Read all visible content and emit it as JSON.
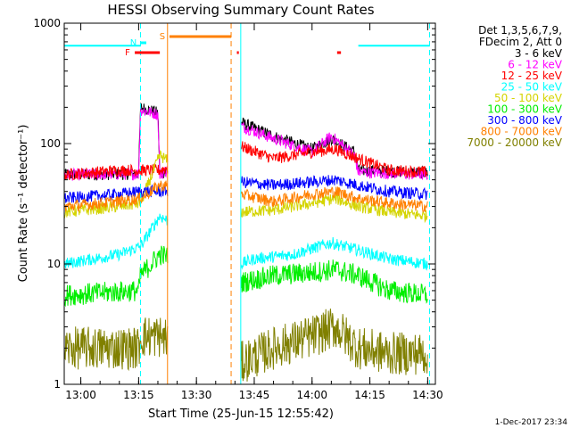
{
  "chart_data": {
    "type": "line",
    "title": "HESSI Observing Summary Count Rates",
    "xlabel": "Start Time (25-Jun-15 12:55:42)",
    "ylabel": "Count Rate (s⁻¹ detector⁻¹)",
    "y_scale": "log",
    "ylim": [
      1,
      1000
    ],
    "xlim": [
      "12:55:42",
      "14:32:00"
    ],
    "x_ticks": [
      "13:00",
      "13:15",
      "13:30",
      "13:45",
      "14:00",
      "14:15",
      "14:30"
    ],
    "y_ticks": [
      "1",
      "10",
      "100",
      "1000"
    ],
    "grid": false,
    "legend_position": "right",
    "legend_header": [
      "Det 1,3,5,6,7,9,",
      "FDecim 2, Att 0"
    ],
    "footer": "1-Dec-2017 23:34",
    "flag_labels": {
      "F": "F",
      "N": "N",
      "S": "S"
    },
    "flags": {
      "F": {
        "color": "#ff0000",
        "intervals": [
          [
            "13:14:00",
            "13:20:30"
          ],
          [
            "13:40:30",
            "13:41:00"
          ],
          [
            "14:06:30",
            "14:07:30"
          ]
        ]
      },
      "N": {
        "color": "#00ffff",
        "intervals": [
          [
            "13:15:30",
            "13:17:00"
          ]
        ]
      },
      "S": {
        "color": "#ff8000",
        "intervals": [
          [
            "13:23:00",
            "13:39:00"
          ]
        ]
      }
    },
    "dashed_markers": [
      {
        "time": "13:15:30",
        "color": "#00ffff"
      },
      {
        "time": "13:39:00",
        "color": "#ff8000"
      },
      {
        "time": "14:30:30",
        "color": "#00ffff"
      }
    ],
    "solid_markers": [
      {
        "time": "13:22:30",
        "color": "#ff8000"
      },
      {
        "time": "13:41:30",
        "color": "#00ffff"
      }
    ],
    "saa_level": 650,
    "saa_intervals": [
      [
        "12:55:42",
        "13:15:30"
      ],
      [
        "14:12:00",
        "14:30:30"
      ]
    ],
    "gap": [
      "13:22:30",
      "13:41:30"
    ],
    "series": [
      {
        "name": "3 - 6 keV",
        "color": "#000000",
        "points": [
          [
            "12:55:42",
            55
          ],
          [
            "13:15:00",
            56
          ],
          [
            "13:15:30",
            200
          ],
          [
            "13:20:00",
            180
          ],
          [
            "13:20:30",
            55
          ],
          [
            "13:41:30",
            150
          ],
          [
            "13:50:00",
            115
          ],
          [
            "14:00:00",
            90
          ],
          [
            "14:05:00",
            110
          ],
          [
            "14:11:00",
            85
          ],
          [
            "14:12:00",
            60
          ],
          [
            "14:30:00",
            57
          ]
        ]
      },
      {
        "name": "6 - 12 keV",
        "color": "#ff00ff",
        "points": [
          [
            "12:55:42",
            55
          ],
          [
            "13:15:00",
            56
          ],
          [
            "13:15:30",
            190
          ],
          [
            "13:20:00",
            175
          ],
          [
            "13:20:30",
            55
          ],
          [
            "13:41:30",
            140
          ],
          [
            "13:50:00",
            110
          ],
          [
            "14:00:00",
            85
          ],
          [
            "14:05:00",
            115
          ],
          [
            "14:11:00",
            80
          ],
          [
            "14:12:00",
            58
          ],
          [
            "14:30:00",
            55
          ]
        ]
      },
      {
        "name": "12 - 25 keV",
        "color": "#ff0000",
        "points": [
          [
            "12:55:42",
            55
          ],
          [
            "13:10:00",
            60
          ],
          [
            "13:15:30",
            60
          ],
          [
            "13:20:30",
            60
          ],
          [
            "13:41:30",
            95
          ],
          [
            "13:50:00",
            75
          ],
          [
            "14:00:00",
            85
          ],
          [
            "14:06:00",
            90
          ],
          [
            "14:12:00",
            75
          ],
          [
            "14:20:00",
            60
          ],
          [
            "14:30:00",
            58
          ]
        ]
      },
      {
        "name": "25 - 50 keV",
        "color": "#00ffff",
        "points": [
          [
            "12:55:42",
            10
          ],
          [
            "13:10:00",
            12
          ],
          [
            "13:15:30",
            14
          ],
          [
            "13:20:30",
            25
          ],
          [
            "13:41:30",
            10
          ],
          [
            "13:45:00",
            11
          ],
          [
            "13:55:00",
            12
          ],
          [
            "14:05:00",
            15
          ],
          [
            "14:12:00",
            13
          ],
          [
            "14:20:00",
            11
          ],
          [
            "14:30:00",
            10
          ]
        ]
      },
      {
        "name": "50 - 100 keV",
        "color": "#d4d400",
        "points": [
          [
            "12:55:42",
            27
          ],
          [
            "13:10:00",
            30
          ],
          [
            "13:15:30",
            32
          ],
          [
            "13:20:30",
            80
          ],
          [
            "13:41:30",
            27
          ],
          [
            "13:50:00",
            28
          ],
          [
            "14:00:00",
            32
          ],
          [
            "14:06:00",
            35
          ],
          [
            "14:12:00",
            30
          ],
          [
            "14:20:00",
            27
          ],
          [
            "14:30:00",
            25
          ]
        ]
      },
      {
        "name": "100 - 300 keV",
        "color": "#00ee00",
        "points": [
          [
            "12:55:42",
            5.5
          ],
          [
            "13:15:00",
            6
          ],
          [
            "13:15:30",
            8
          ],
          [
            "13:20:30",
            12
          ],
          [
            "13:41:30",
            7
          ],
          [
            "13:50:00",
            8
          ],
          [
            "14:00:00",
            8.5
          ],
          [
            "14:06:00",
            9
          ],
          [
            "14:12:00",
            8
          ],
          [
            "14:20:00",
            6
          ],
          [
            "14:30:00",
            5.5
          ]
        ]
      },
      {
        "name": "300 - 800 keV",
        "color": "#0000ff",
        "points": [
          [
            "12:55:42",
            35
          ],
          [
            "13:10:00",
            38
          ],
          [
            "13:15:30",
            40
          ],
          [
            "13:20:30",
            40
          ],
          [
            "13:41:30",
            48
          ],
          [
            "13:50:00",
            45
          ],
          [
            "14:00:00",
            48
          ],
          [
            "14:06:00",
            50
          ],
          [
            "14:12:00",
            45
          ],
          [
            "14:20:00",
            40
          ],
          [
            "14:30:00",
            38
          ]
        ]
      },
      {
        "name": "800 - 7000 keV",
        "color": "#ff8000",
        "points": [
          [
            "12:55:42",
            30
          ],
          [
            "13:10:00",
            33
          ],
          [
            "13:15:30",
            35
          ],
          [
            "13:20:30",
            45
          ],
          [
            "13:41:30",
            38
          ],
          [
            "13:50:00",
            33
          ],
          [
            "14:00:00",
            38
          ],
          [
            "14:06:00",
            40
          ],
          [
            "14:12:00",
            35
          ],
          [
            "14:20:00",
            32
          ],
          [
            "14:30:00",
            30
          ]
        ]
      },
      {
        "name": "7000 - 20000 keV",
        "color": "#808000",
        "points": [
          [
            "12:55:42",
            2
          ],
          [
            "13:15:00",
            2
          ],
          [
            "13:15:30",
            2.5
          ],
          [
            "13:20:30",
            2.5
          ],
          [
            "13:41:30",
            1.5
          ],
          [
            "13:50:00",
            2
          ],
          [
            "14:00:00",
            2.5
          ],
          [
            "14:06:00",
            3
          ],
          [
            "14:12:00",
            2
          ],
          [
            "14:20:00",
            1.8
          ],
          [
            "14:30:00",
            1.8
          ]
        ]
      }
    ]
  }
}
